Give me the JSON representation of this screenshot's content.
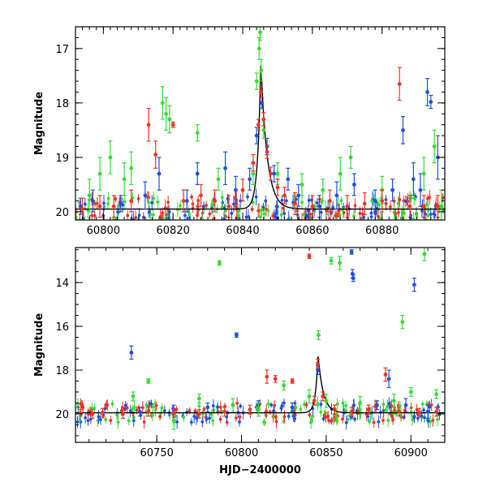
{
  "chart_data": [
    {
      "type": "scatter",
      "panel": "top",
      "title": "",
      "xlabel": "",
      "ylabel": "Magnitude",
      "xlim": [
        60792,
        60898
      ],
      "ylim": [
        20.15,
        16.6
      ],
      "y_inverted": true,
      "x_ticks": [
        60800,
        60820,
        60840,
        60860,
        60880
      ],
      "x_tick_labels": [
        "60800",
        "60820",
        "60840",
        "60860",
        "60880"
      ],
      "x_minor_step": 2,
      "y_ticks": [
        17,
        18,
        19,
        20
      ],
      "y_tick_labels": [
        "17",
        "18",
        "19",
        "20"
      ],
      "y_minor_step": 0.2,
      "grid": false,
      "legend": "none",
      "colors": {
        "blue": "#1f4fe0",
        "green": "#33dd33",
        "red": "#ee3322",
        "model": "#000000"
      },
      "model_curve": {
        "baseline": 19.95,
        "peak_x": 60845.2,
        "peak_y": 17.25,
        "rise_scale": 0.9,
        "decay_scale": 1.8
      },
      "series": [
        {
          "color": "blue",
          "points": [
            [
              60793.5,
              19.9,
              0.15
            ],
            [
              60797,
              19.8,
              0.2
            ],
            [
              60805,
              19.85,
              0.15
            ],
            [
              60812,
              19.7,
              0.25
            ],
            [
              60816,
              19.3,
              0.3
            ],
            [
              60824,
              19.8,
              0.2
            ],
            [
              60827,
              19.3,
              0.2
            ],
            [
              60835,
              19.2,
              0.3
            ],
            [
              60838,
              19.6,
              0.25
            ],
            [
              60842,
              19.4,
              0.2
            ],
            [
              60844,
              18.6,
              0.15
            ],
            [
              60845.5,
              18.0,
              0.1
            ],
            [
              60847,
              18.8,
              0.15
            ],
            [
              60849,
              19.3,
              0.15
            ],
            [
              60853,
              19.4,
              0.2
            ],
            [
              60856,
              19.7,
              0.2
            ],
            [
              60862,
              19.9,
              0.2
            ],
            [
              60867,
              19.7,
              0.25
            ],
            [
              60872,
              19.5,
              0.2
            ],
            [
              60878,
              19.8,
              0.2
            ],
            [
              60883,
              19.6,
              0.2
            ],
            [
              60886,
              18.5,
              0.25
            ],
            [
              60889,
              19.4,
              0.3
            ],
            [
              60891,
              19.6,
              0.3
            ],
            [
              60893,
              17.8,
              0.25
            ],
            [
              60894,
              17.98,
              0.12
            ],
            [
              60896,
              19.0,
              0.4
            ]
          ]
        },
        {
          "color": "green",
          "points": [
            [
              60796,
              19.7,
              0.3
            ],
            [
              60799,
              19.3,
              0.3
            ],
            [
              60802,
              19.0,
              0.3
            ],
            [
              60806,
              19.4,
              0.3
            ],
            [
              60808,
              19.2,
              0.3
            ],
            [
              60817,
              18.0,
              0.3
            ],
            [
              60818,
              18.2,
              0.3
            ],
            [
              60819,
              18.3,
              0.25
            ],
            [
              60827,
              18.55,
              0.15
            ],
            [
              60833,
              19.4,
              0.2
            ],
            [
              60843,
              19.3,
              0.2
            ],
            [
              60844,
              17.6,
              0.15
            ],
            [
              60844.7,
              17.0,
              0.2
            ],
            [
              60845,
              16.7,
              0.15
            ],
            [
              60845.3,
              17.4,
              0.2
            ],
            [
              60846,
              18.5,
              0.15
            ],
            [
              60850,
              19.3,
              0.2
            ],
            [
              60857,
              19.5,
              0.2
            ],
            [
              60863,
              19.6,
              0.2
            ],
            [
              60868,
              19.3,
              0.3
            ],
            [
              60871,
              19.0,
              0.2
            ],
            [
              60880,
              19.6,
              0.25
            ],
            [
              60892,
              19.3,
              0.3
            ],
            [
              60895,
              18.8,
              0.3
            ],
            [
              60897,
              19.9,
              0.3
            ]
          ]
        },
        {
          "color": "red",
          "points": [
            [
              60794,
              19.95,
              0.2
            ],
            [
              60799,
              19.9,
              0.2
            ],
            [
              60803,
              19.9,
              0.2
            ],
            [
              60808,
              19.8,
              0.2
            ],
            [
              60813,
              18.4,
              0.3
            ],
            [
              60815,
              18.95,
              0.25
            ],
            [
              60820,
              18.4,
              0.05
            ],
            [
              60823,
              19.8,
              0.2
            ],
            [
              60828,
              19.7,
              0.2
            ],
            [
              60832,
              19.8,
              0.2
            ],
            [
              60836,
              19.9,
              0.2
            ],
            [
              60840,
              19.6,
              0.2
            ],
            [
              60843,
              19.1,
              0.15
            ],
            [
              60844.5,
              18.4,
              0.1
            ],
            [
              60845.2,
              17.8,
              0.1
            ],
            [
              60846,
              18.3,
              0.12
            ],
            [
              60847,
              18.9,
              0.12
            ],
            [
              60848,
              19.3,
              0.12
            ],
            [
              60850,
              19.55,
              0.15
            ],
            [
              60852,
              19.7,
              0.15
            ],
            [
              60855,
              19.85,
              0.2
            ],
            [
              60860,
              19.9,
              0.2
            ],
            [
              60865,
              19.8,
              0.2
            ],
            [
              60870,
              19.9,
              0.2
            ],
            [
              60875,
              19.85,
              0.2
            ],
            [
              60880,
              19.8,
              0.2
            ],
            [
              60885,
              17.65,
              0.3
            ],
            [
              60888,
              19.9,
              0.2
            ],
            [
              60892,
              19.9,
              0.2
            ],
            [
              60896,
              19.9,
              0.2
            ]
          ]
        }
      ]
    },
    {
      "type": "scatter",
      "panel": "bottom",
      "title": "",
      "xlabel": "HJD−2400000",
      "ylabel": "Magnitude",
      "xlim": [
        60702,
        60920
      ],
      "ylim": [
        21.3,
        12.4
      ],
      "y_inverted": true,
      "x_ticks": [
        60750,
        60800,
        60850,
        60900
      ],
      "x_tick_labels": [
        "60750",
        "60800",
        "60850",
        "60900"
      ],
      "x_minor_step": 10,
      "y_ticks": [
        14,
        16,
        18,
        20
      ],
      "y_tick_labels": [
        "14",
        "16",
        "18",
        "20"
      ],
      "y_minor_step": 0.5,
      "grid": false,
      "legend": "none",
      "colors": {
        "blue": "#1f4fe0",
        "green": "#33dd33",
        "red": "#ee3322",
        "model": "#000000"
      },
      "model_curve": {
        "baseline": 19.95,
        "peak_x": 60845.2,
        "peak_y": 17.3,
        "rise_scale": 1.5,
        "decay_scale": 3.0
      },
      "series": [
        {
          "color": "blue",
          "points": [
            [
              60735,
              17.2,
              0.3
            ],
            [
              60740,
              19.9,
              0.2
            ],
            [
              60760,
              19.8,
              0.2
            ],
            [
              60780,
              19.7,
              0.2
            ],
            [
              60797,
              16.4,
              0.1
            ],
            [
              60810,
              19.6,
              0.2
            ],
            [
              60830,
              19.7,
              0.2
            ],
            [
              60845,
              18.0,
              0.2
            ],
            [
              60865,
              12.6,
              0.1
            ],
            [
              60865.5,
              13.6,
              0.2
            ],
            [
              60866,
              13.8,
              0.15
            ],
            [
              60880,
              19.6,
              0.2
            ],
            [
              60887,
              18.4,
              0.4
            ],
            [
              60897,
              19.6,
              0.3
            ],
            [
              60902,
              14.1,
              0.3
            ],
            [
              60910,
              19.9,
              0.3
            ]
          ]
        },
        {
          "color": "green",
          "points": [
            [
              60736,
              19.2,
              0.2
            ],
            [
              60745,
              18.5,
              0.1
            ],
            [
              60760,
              20.3,
              0.4
            ],
            [
              60775,
              19.3,
              0.2
            ],
            [
              60787,
              13.1,
              0.1
            ],
            [
              60795,
              19.6,
              0.3
            ],
            [
              60810,
              19.8,
              0.3
            ],
            [
              60825,
              18.7,
              0.2
            ],
            [
              60840,
              19.2,
              0.3
            ],
            [
              60845.5,
              16.4,
              0.2
            ],
            [
              60850,
              19.4,
              0.3
            ],
            [
              60853,
              13.0,
              0.15
            ],
            [
              60858,
              13.1,
              0.3
            ],
            [
              60870,
              19.5,
              0.3
            ],
            [
              60890,
              19.4,
              0.3
            ],
            [
              60895,
              15.8,
              0.3
            ],
            [
              60900,
              19.0,
              0.2
            ],
            [
              60908,
              12.7,
              0.3
            ],
            [
              60915,
              19.1,
              0.2
            ]
          ]
        },
        {
          "color": "red",
          "points": [
            [
              60705,
              19.95,
              0.15
            ],
            [
              60712,
              20.0,
              0.2
            ],
            [
              60718,
              19.95,
              0.2
            ],
            [
              60730,
              20.0,
              0.2
            ],
            [
              60745,
              19.9,
              0.2
            ],
            [
              60760,
              19.95,
              0.2
            ],
            [
              60775,
              20.0,
              0.2
            ],
            [
              60790,
              19.9,
              0.2
            ],
            [
              60805,
              19.8,
              0.2
            ],
            [
              60815,
              18.3,
              0.3
            ],
            [
              60820,
              18.4,
              0.15
            ],
            [
              60830,
              18.5,
              0.1
            ],
            [
              60840,
              12.8,
              0.1
            ],
            [
              60843,
              19.4,
              0.2
            ],
            [
              60845,
              17.7,
              0.2
            ],
            [
              60848,
              19.2,
              0.2
            ],
            [
              60855,
              19.8,
              0.2
            ],
            [
              60865,
              19.9,
              0.2
            ],
            [
              60875,
              19.8,
              0.2
            ],
            [
              60885,
              18.2,
              0.3
            ],
            [
              60893,
              19.9,
              0.2
            ],
            [
              60905,
              19.95,
              0.2
            ],
            [
              60915,
              19.9,
              0.2
            ]
          ]
        }
      ]
    }
  ]
}
